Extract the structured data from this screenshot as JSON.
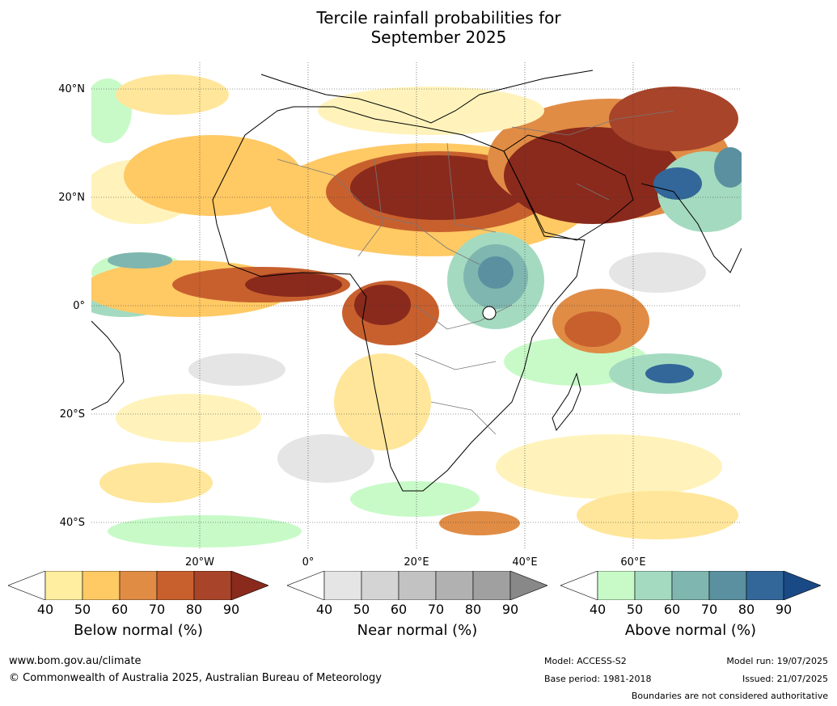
{
  "title": {
    "line1": "Tercile rainfall probabilities for",
    "line2": "September 2025"
  },
  "map": {
    "lat_labels": [
      "40°N",
      "20°N",
      "0°",
      "20°S",
      "40°S"
    ],
    "lon_labels": [
      "20°W",
      "0°",
      "20°E",
      "40°E",
      "60°E"
    ]
  },
  "colorbars": [
    {
      "label": "Below normal (%)",
      "ticks": [
        "40",
        "50",
        "60",
        "70",
        "80",
        "90"
      ],
      "colors": [
        "#ffffff",
        "#ffeea0",
        "#ffc964",
        "#e08c45",
        "#c8602e",
        "#a8442a",
        "#8a2a1c"
      ]
    },
    {
      "label": "Near normal (%)",
      "ticks": [
        "40",
        "50",
        "60",
        "70",
        "80",
        "90"
      ],
      "colors": [
        "#ffffff",
        "#e5e5e5",
        "#d4d4d4",
        "#c2c2c2",
        "#b1b1b1",
        "#a0a0a0",
        "#888888"
      ]
    },
    {
      "label": "Above normal (%)",
      "ticks": [
        "40",
        "50",
        "60",
        "70",
        "80",
        "90"
      ],
      "colors": [
        "#ffffff",
        "#c8fac8",
        "#a4dac0",
        "#7fb6b0",
        "#5a90a0",
        "#33679a",
        "#1a4a86"
      ]
    }
  ],
  "footer": {
    "url": "www.bom.gov.au/climate",
    "copyright": "© Commonwealth of Australia 2025, Australian Bureau of Meteorology",
    "model": "Model: ACCESS-S2",
    "base_period": "Base period: 1981-2018",
    "model_run": "Model run: 19/07/2025",
    "issued": "Issued: 21/07/2025",
    "disclaimer": "Boundaries are not considered authoritative"
  }
}
